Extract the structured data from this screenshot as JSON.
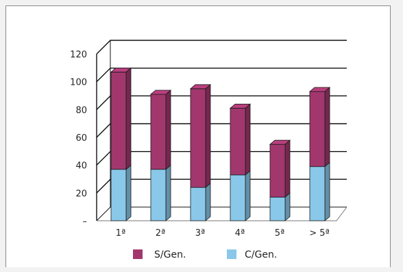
{
  "chart_data": {
    "type": "bar",
    "stacked": true,
    "three_d": true,
    "categories": [
      "1ª",
      "2ª",
      "3ª",
      "4ª",
      "5ª",
      "> 5ª"
    ],
    "series": [
      {
        "name": "C/Gen.",
        "color": "#8ac8ea",
        "values": [
          37,
          37,
          24,
          33,
          17,
          39
        ]
      },
      {
        "name": "S/Gen.",
        "color": "#a2376e",
        "values": [
          70,
          54,
          71,
          48,
          38,
          54
        ]
      }
    ],
    "y_ticks": [
      "–",
      "20",
      "40",
      "60",
      "80",
      "100",
      "120"
    ],
    "ylim": [
      0,
      120
    ],
    "grid": true,
    "legend_position": "bottom",
    "title": "",
    "xlabel": "",
    "ylabel": ""
  }
}
